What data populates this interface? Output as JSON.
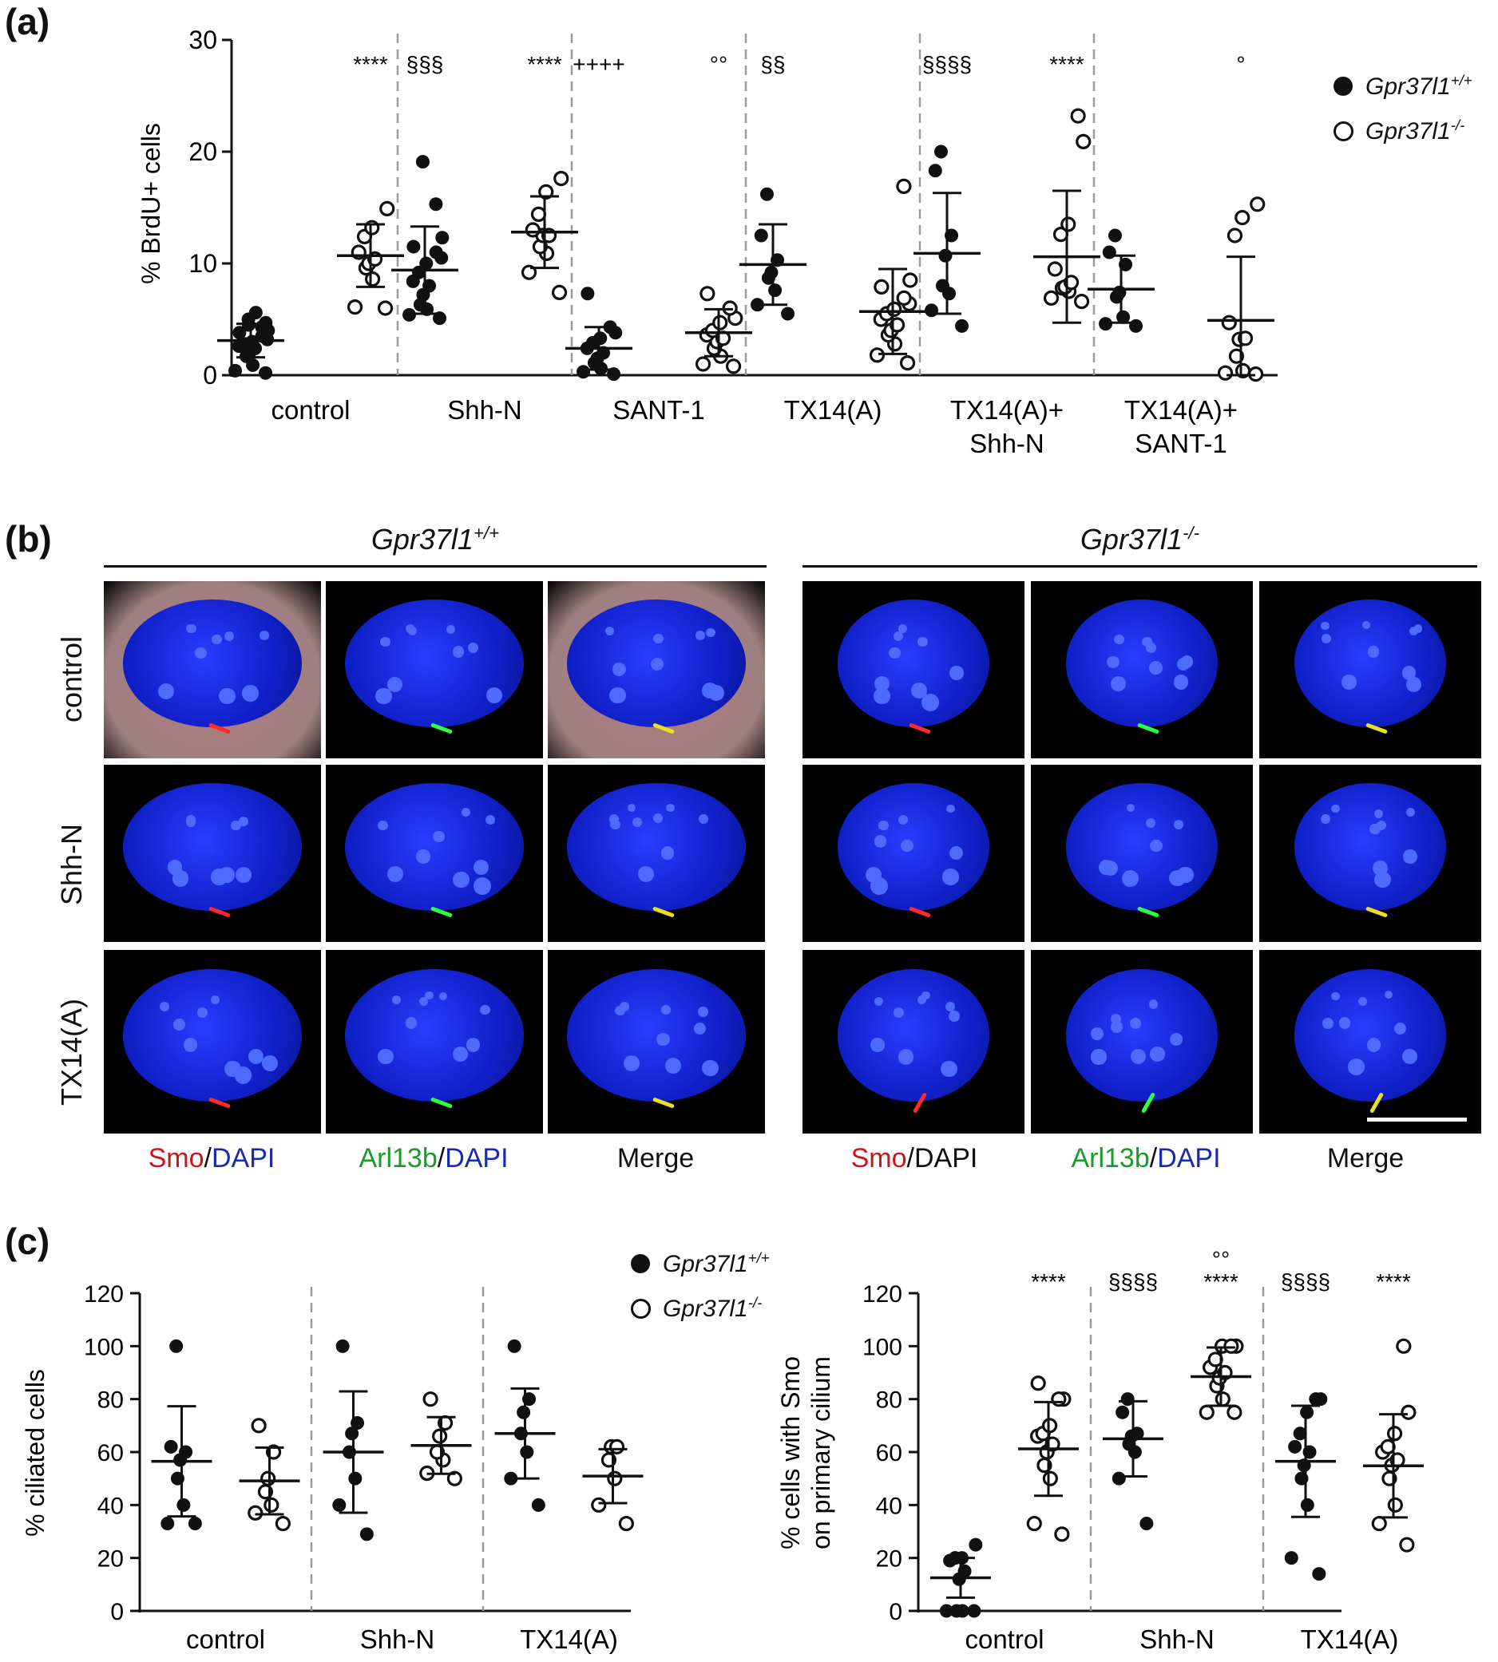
{
  "panels": {
    "a": "(a)",
    "b": "(b)",
    "c": "(c)"
  },
  "legend": {
    "wt": {
      "name": "Gpr37l1",
      "sup": "+/+"
    },
    "ko": {
      "name": "Gpr37l1",
      "sup": "-/-"
    }
  },
  "panel_b": {
    "wt_title": "Gpr37l1",
    "wt_sup": "+/+",
    "ko_title": "Gpr37l1",
    "ko_sup": "-/-",
    "conditions": [
      "control",
      "Shh-N",
      "TX14(A)"
    ],
    "wt_channels": {
      "c1": {
        "a": "Smo",
        "b": "/",
        "c": "DAPI"
      },
      "c2": {
        "a": "Arl13b",
        "b": "/",
        "c": "DAPI"
      },
      "c3": "Merge"
    },
    "ko_channels": {
      "c1": {
        "a": "Smo",
        "b": "/DAPI"
      },
      "c2": {
        "a": "Arl13b",
        "b": "/",
        "c": "DAPI"
      },
      "c3": "Merge"
    },
    "colors": {
      "red": "#d0131b",
      "green": "#1a9a2a",
      "blue": "#1a2ab0"
    }
  },
  "chart_data": [
    {
      "id": "a",
      "type": "scatter",
      "ylabel": "% BrdU+ cells",
      "ylim": [
        0,
        30
      ],
      "yticks": [
        0,
        10,
        20,
        30
      ],
      "groups": [
        {
          "label": [
            "control"
          ],
          "annotations": [
            "",
            "****"
          ]
        },
        {
          "label": [
            "Shh-N"
          ],
          "annotations": [
            "§§§",
            "****"
          ]
        },
        {
          "label": [
            "SANT-1"
          ],
          "annotations": [
            "++++",
            "°°"
          ]
        },
        {
          "label": [
            "TX14(A)"
          ],
          "annotations": [
            "§§",
            ""
          ]
        },
        {
          "label": [
            "TX14(A)+",
            "Shh-N"
          ],
          "annotations": [
            "§§§§",
            "****"
          ]
        },
        {
          "label": [
            "TX14(A)+",
            "SANT-1"
          ],
          "annotations": [
            "",
            "°"
          ]
        }
      ],
      "series": [
        {
          "genotype": "+/+",
          "marker": "filled",
          "groups": [
            {
              "mean": 3.1,
              "sd": 1.5,
              "points": [
                0.2,
                0.4,
                0.9,
                1.7,
                1.9,
                2.4,
                2.6,
                2.8,
                3.0,
                3.2,
                3.5,
                3.8,
                4.0,
                4.3,
                4.5,
                4.7,
                5.0,
                5.6
              ]
            },
            {
              "mean": 9.4,
              "sd": 3.9,
              "points": [
                5.1,
                5.4,
                5.9,
                6.3,
                7.2,
                8.0,
                8.4,
                9.2,
                10.0,
                10.5,
                11.0,
                11.5,
                12.3,
                15.3,
                19.1
              ]
            },
            {
              "mean": 2.4,
              "sd": 1.9,
              "points": [
                0.1,
                0.3,
                0.6,
                1.1,
                1.5,
                2.0,
                2.4,
                2.9,
                3.3,
                3.8,
                4.3,
                7.3
              ]
            },
            {
              "mean": 9.9,
              "sd": 3.6,
              "points": [
                5.5,
                6.3,
                7.6,
                8.7,
                9.2,
                10.3,
                12.5,
                16.2
              ]
            },
            {
              "mean": 10.9,
              "sd": 5.4,
              "points": [
                4.4,
                5.8,
                7.3,
                8.0,
                10.7,
                12.5,
                18.3,
                20.0
              ]
            },
            {
              "mean": 7.7,
              "sd": 3.0,
              "points": [
                4.4,
                4.6,
                5.2,
                7.0,
                7.4,
                9.9,
                11.0,
                12.5
              ]
            }
          ]
        },
        {
          "genotype": "-/-",
          "marker": "open",
          "groups": [
            {
              "mean": 10.7,
              "sd": 2.8,
              "points": [
                6.0,
                6.1,
                8.6,
                9.6,
                10.0,
                10.4,
                11.0,
                12.4,
                13.2,
                14.9
              ]
            },
            {
              "mean": 12.8,
              "sd": 3.2,
              "points": [
                7.4,
                9.2,
                10.9,
                11.5,
                12.5,
                12.5,
                13.0,
                14.4,
                16.4,
                17.6
              ]
            },
            {
              "mean": 3.8,
              "sd": 2.1,
              "points": [
                0.8,
                1.0,
                1.7,
                2.4,
                3.0,
                3.3,
                3.6,
                4.0,
                4.7,
                5.1,
                6.0,
                7.3
              ]
            },
            {
              "mean": 5.7,
              "sd": 3.8,
              "points": [
                1.1,
                1.8,
                2.8,
                3.6,
                4.0,
                4.5,
                5.0,
                5.5,
                5.9,
                6.4,
                6.9,
                7.9,
                8.5,
                16.9
              ]
            },
            {
              "mean": 10.6,
              "sd": 5.9,
              "points": [
                6.6,
                6.9,
                7.5,
                7.8,
                7.9,
                8.3,
                9.5,
                12.6,
                13.5,
                20.9,
                23.2
              ]
            },
            {
              "mean": 4.9,
              "sd": 5.7,
              "points": [
                0.1,
                0.2,
                0.4,
                1.7,
                3.2,
                3.3,
                4.7,
                12.5,
                14.1,
                15.3
              ]
            }
          ]
        }
      ]
    },
    {
      "id": "c-left",
      "type": "scatter",
      "ylabel": "% ciliated cells",
      "ylim": [
        0,
        120
      ],
      "yticks": [
        0,
        20,
        40,
        60,
        80,
        100,
        120
      ],
      "groups": [
        {
          "label": [
            "control"
          ],
          "annotations": [
            "",
            ""
          ]
        },
        {
          "label": [
            "Shh-N"
          ],
          "annotations": [
            "",
            ""
          ]
        },
        {
          "label": [
            "TX14(A)"
          ],
          "annotations": [
            "",
            ""
          ]
        }
      ],
      "series": [
        {
          "genotype": "+/+",
          "marker": "filled",
          "groups": [
            {
              "mean": 56.5,
              "sd": 20.8,
              "points": [
                33,
                33,
                40,
                50,
                57,
                60,
                62,
                100
              ]
            },
            {
              "mean": 60,
              "sd": 22.9,
              "points": [
                29,
                40,
                50,
                60,
                67,
                71,
                100
              ]
            },
            {
              "mean": 67,
              "sd": 17,
              "points": [
                40,
                50,
                60,
                67,
                75,
                80,
                100
              ]
            }
          ]
        },
        {
          "genotype": "-/-",
          "marker": "open",
          "groups": [
            {
              "mean": 49.1,
              "sd": 12.6,
              "points": [
                33,
                37,
                40,
                45,
                50,
                60,
                70
              ]
            },
            {
              "mean": 62.5,
              "sd": 10.7,
              "points": [
                50,
                52,
                57,
                60,
                66,
                71,
                80
              ]
            },
            {
              "mean": 50.9,
              "sd": 10.2,
              "points": [
                33,
                40,
                50,
                57,
                62,
                62
              ]
            }
          ]
        }
      ]
    },
    {
      "id": "c-right",
      "type": "scatter",
      "ylabel": [
        "% cells with Smo",
        "on primary cilium"
      ],
      "ylim": [
        0,
        120
      ],
      "yticks": [
        0,
        20,
        40,
        60,
        80,
        100,
        120
      ],
      "groups": [
        {
          "label": [
            "control"
          ],
          "annotations": [
            "",
            "****"
          ]
        },
        {
          "label": [
            "Shh-N"
          ],
          "annotations": [
            "§§§§",
            "°°\n****"
          ]
        },
        {
          "label": [
            "TX14(A)"
          ],
          "annotations": [
            "§§§§",
            "****"
          ]
        }
      ],
      "series": [
        {
          "genotype": "+/+",
          "marker": "filled",
          "groups": [
            {
              "mean": 12.5,
              "sd": 7.5,
              "points": [
                0,
                0,
                0,
                0,
                12,
                15,
                19,
                20,
                20,
                25
              ]
            },
            {
              "mean": 65,
              "sd": 14.2,
              "points": [
                33,
                50,
                60,
                63,
                66,
                67,
                75,
                80
              ]
            },
            {
              "mean": 56.5,
              "sd": 21,
              "points": [
                14,
                20,
                40,
                50,
                55,
                60,
                62,
                67,
                75,
                80,
                80
              ]
            }
          ]
        },
        {
          "genotype": "-/-",
          "marker": "open",
          "groups": [
            {
              "mean": 61.2,
              "sd": 17.7,
              "points": [
                29,
                33,
                50,
                55,
                60,
                63,
                66,
                67,
                70,
                80,
                80,
                86
              ]
            },
            {
              "mean": 88.5,
              "sd": 11,
              "points": [
                75,
                75,
                80,
                85,
                88,
                90,
                92,
                95,
                100,
                100,
                100
              ]
            },
            {
              "mean": 54.8,
              "sd": 19.5,
              "points": [
                25,
                33,
                40,
                50,
                55,
                57,
                60,
                62,
                67,
                75,
                100
              ]
            }
          ]
        }
      ]
    }
  ]
}
